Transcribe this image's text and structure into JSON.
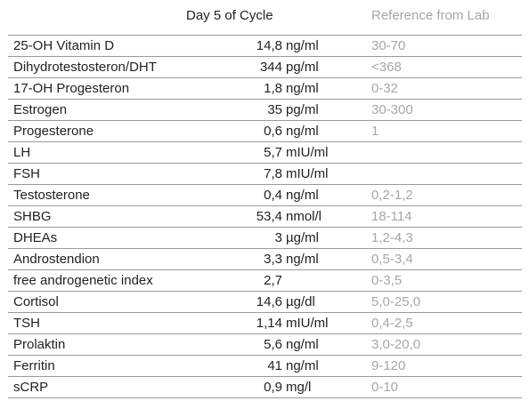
{
  "header": {
    "day_label": "Day 5 of Cycle",
    "ref_label": "Reference from Lab"
  },
  "rows": [
    {
      "name": "25-OH Vitamin D",
      "value": "14,8",
      "unit": "ng/ml",
      "ref": "30-70"
    },
    {
      "name": "Dihydrotestosteron/DHT",
      "value": "344",
      "unit": "pg/ml",
      "ref": "<368"
    },
    {
      "name": "17-OH Progesteron",
      "value": "1,8",
      "unit": "ng/ml",
      "ref": "0-32"
    },
    {
      "name": "Estrogen",
      "value": "35",
      "unit": "pg/ml",
      "ref": "30-300"
    },
    {
      "name": "Progesterone",
      "value": "0,6",
      "unit": "ng/ml",
      "ref": "1"
    },
    {
      "name": "LH",
      "value": "5,7",
      "unit": "mIU/ml",
      "ref": ""
    },
    {
      "name": "FSH",
      "value": "7,8",
      "unit": "mIU/ml",
      "ref": ""
    },
    {
      "name": "Testosterone",
      "value": "0,4",
      "unit": "ng/ml",
      "ref": "0,2-1,2"
    },
    {
      "name": "SHBG",
      "value": "53,4",
      "unit": "nmol/l",
      "ref": "18-114"
    },
    {
      "name": "DHEAs",
      "value": "3",
      "unit": "µg/ml",
      "ref": "1,2-4,3"
    },
    {
      "name": "Androstendion",
      "value": "3,3",
      "unit": "ng/ml",
      "ref": "0,5-3,4"
    },
    {
      "name": "free androgenetic index",
      "value": "2,7",
      "unit": "",
      "ref": "0-3,5"
    },
    {
      "name": "Cortisol",
      "value": "14,6",
      "unit": "µg/dl",
      "ref": "5,0-25,0"
    },
    {
      "name": "TSH",
      "value": "1,14",
      "unit": "mIU/ml",
      "ref": "0,4-2,5"
    },
    {
      "name": "Prolaktin",
      "value": "5,6",
      "unit": "ng/ml",
      "ref": "3,0-20,0"
    },
    {
      "name": "Ferritin",
      "value": "41",
      "unit": "ng/ml",
      "ref": "9-120"
    },
    {
      "name": "sCRP",
      "value": "0,9",
      "unit": "mg/l",
      "ref": "0-10"
    }
  ]
}
